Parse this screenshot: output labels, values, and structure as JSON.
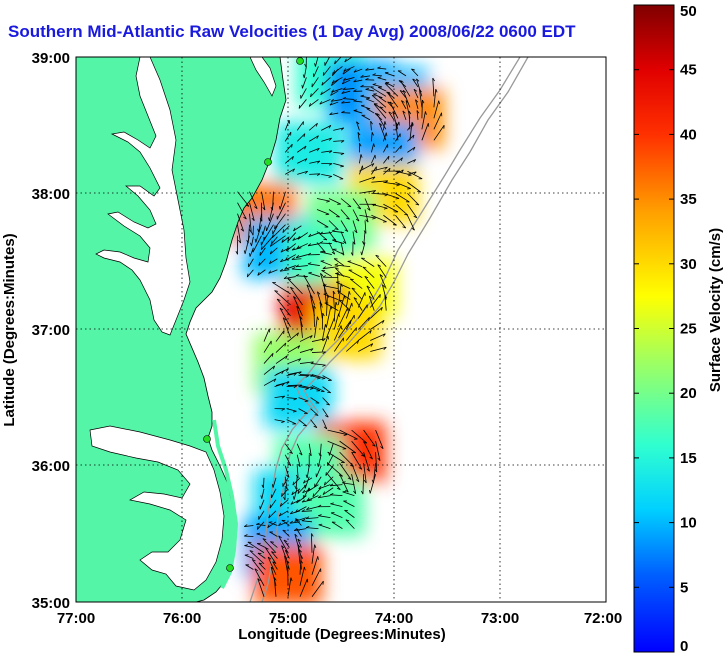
{
  "title": "Southern Mid-Atlantic Raw Velocities (1 Day Avg) 2008/06/22 0600 EDT",
  "map": {
    "xlabel": "Longitude (Degrees:Minutes)",
    "ylabel": "Latitude (Degrees:Minutes)",
    "lon_ticks": [
      "77:00",
      "76:00",
      "75:00",
      "74:00",
      "73:00",
      "72:00"
    ],
    "lat_ticks": [
      "39:00",
      "38:00",
      "37:00",
      "36:00",
      "35:00"
    ],
    "lon_range": [
      -77,
      -72
    ],
    "lat_range": [
      35,
      39
    ],
    "grid": true,
    "land_color": "#55f5a8",
    "water_color": "#ffffff"
  },
  "colorbar": {
    "label": "Surface Velocity (cm/s)",
    "ticks": [
      "50",
      "45",
      "40",
      "35",
      "30",
      "25",
      "20",
      "15",
      "10",
      "5",
      "0"
    ],
    "range": [
      0,
      50
    ]
  },
  "chart_data": {
    "type": "heatmap",
    "title": "Southern Mid-Atlantic Raw Velocities (1 Day Avg) 2008/06/22 0600 EDT",
    "xlabel": "Longitude (Degrees:Minutes)",
    "ylabel": "Latitude (Degrees:Minutes)",
    "colorbar_label": "Surface Velocity (cm/s)",
    "zlim": [
      0,
      50
    ],
    "xlim": [
      -77,
      -72
    ],
    "ylim": [
      35,
      39
    ],
    "cells": [
      {
        "lon": -74.6,
        "lat": 38.85,
        "speed": 16
      },
      {
        "lon": -74.3,
        "lat": 38.75,
        "speed": 8
      },
      {
        "lon": -74.0,
        "lat": 38.7,
        "speed": 10
      },
      {
        "lon": -73.85,
        "lat": 38.55,
        "speed": 35
      },
      {
        "lon": -74.1,
        "lat": 38.3,
        "speed": 9
      },
      {
        "lon": -74.8,
        "lat": 38.3,
        "speed": 14
      },
      {
        "lon": -74.1,
        "lat": 38.0,
        "speed": 30
      },
      {
        "lon": -74.5,
        "lat": 37.8,
        "speed": 20
      },
      {
        "lon": -75.25,
        "lat": 37.85,
        "speed": 36
      },
      {
        "lon": -75.1,
        "lat": 37.6,
        "speed": 10
      },
      {
        "lon": -74.7,
        "lat": 37.55,
        "speed": 17
      },
      {
        "lon": -74.3,
        "lat": 37.3,
        "speed": 27
      },
      {
        "lon": -74.75,
        "lat": 37.1,
        "speed": 44
      },
      {
        "lon": -74.45,
        "lat": 37.0,
        "speed": 30
      },
      {
        "lon": -75.0,
        "lat": 36.75,
        "speed": 22
      },
      {
        "lon": -74.9,
        "lat": 36.5,
        "speed": 12
      },
      {
        "lon": -74.4,
        "lat": 36.1,
        "speed": 40
      },
      {
        "lon": -74.8,
        "lat": 36.0,
        "speed": 18
      },
      {
        "lon": -75.0,
        "lat": 35.75,
        "speed": 12
      },
      {
        "lon": -74.6,
        "lat": 35.7,
        "speed": 18
      },
      {
        "lon": -75.1,
        "lat": 35.4,
        "speed": 9
      },
      {
        "lon": -75.0,
        "lat": 35.2,
        "speed": 38
      }
    ]
  }
}
